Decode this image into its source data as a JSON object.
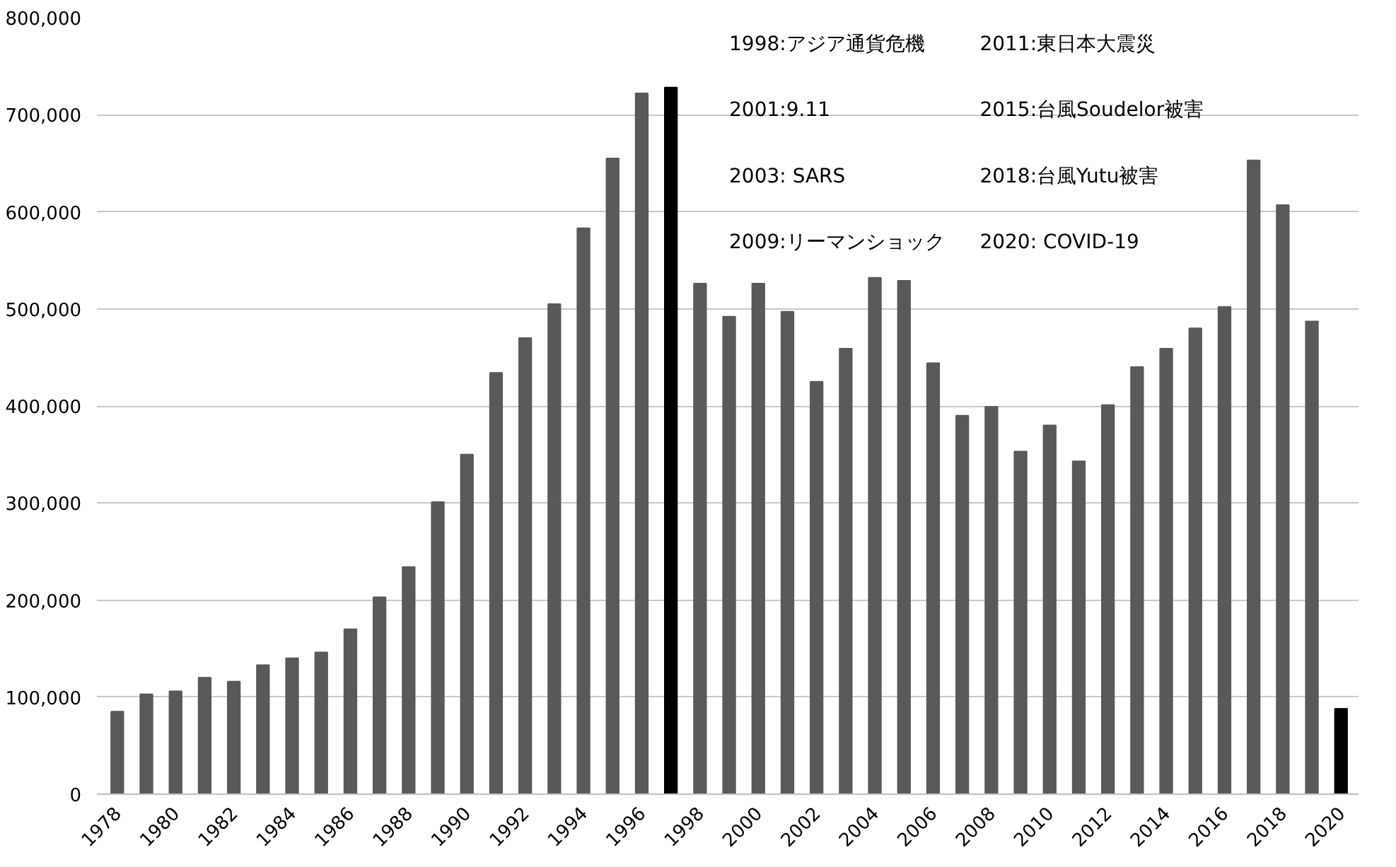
{
  "chart_data": {
    "type": "bar",
    "categories": [
      "1978",
      null,
      "1980",
      null,
      "1982",
      null,
      "1984",
      null,
      "1986",
      null,
      "1988",
      null,
      "1990",
      null,
      "1992",
      null,
      "1994",
      null,
      "1996",
      null,
      "1998",
      null,
      "2000",
      null,
      "2002",
      null,
      "2004",
      null,
      "2006",
      null,
      "2008",
      null,
      "2010",
      null,
      "2012",
      null,
      "2014",
      null,
      "2016",
      null,
      "2018",
      null,
      "2020"
    ],
    "values": [
      85000,
      103000,
      106000,
      120000,
      116000,
      133000,
      140000,
      146000,
      170000,
      203000,
      234000,
      301000,
      350000,
      434000,
      470000,
      505000,
      583000,
      655000,
      722000,
      728000,
      526000,
      492000,
      526000,
      497000,
      425000,
      459000,
      532000,
      529000,
      444000,
      390000,
      399000,
      353000,
      380000,
      343000,
      401000,
      440000,
      459000,
      480000,
      502000,
      653000,
      607000,
      487000,
      88000
    ],
    "colors": [
      "#595959",
      "#595959",
      "#595959",
      "#595959",
      "#595959",
      "#595959",
      "#595959",
      "#595959",
      "#595959",
      "#595959",
      "#595959",
      "#595959",
      "#595959",
      "#595959",
      "#595959",
      "#595959",
      "#595959",
      "#595959",
      "#595959",
      "#000000",
      "#595959",
      "#595959",
      "#595959",
      "#595959",
      "#595959",
      "#595959",
      "#595959",
      "#595959",
      "#595959",
      "#595959",
      "#595959",
      "#595959",
      "#595959",
      "#595959",
      "#595959",
      "#595959",
      "#595959",
      "#595959",
      "#595959",
      "#595959",
      "#595959",
      "#595959",
      "#000000"
    ],
    "ylim": [
      0,
      800000
    ],
    "yticks": [
      {
        "value": 0,
        "label": "0"
      },
      {
        "value": 100000,
        "label": "100,000"
      },
      {
        "value": 200000,
        "label": "200,000"
      },
      {
        "value": 300000,
        "label": "300,000"
      },
      {
        "value": 400000,
        "label": "400,000"
      },
      {
        "value": 500000,
        "label": "500,000"
      },
      {
        "value": 600000,
        "label": "600,000"
      },
      {
        "value": 700000,
        "label": "700,000"
      },
      {
        "value": 800000,
        "label": "800,000"
      }
    ],
    "grid": "y",
    "annotations": [
      "1998:アジア通貨危機",
      "2001:9.11",
      "2003: SARS",
      "2009:リーマンショック",
      "2011:東日本大震災",
      "2015:台風Soudelor被害",
      "2018:台風Yutu被害",
      "2020: COVID-19"
    ]
  }
}
